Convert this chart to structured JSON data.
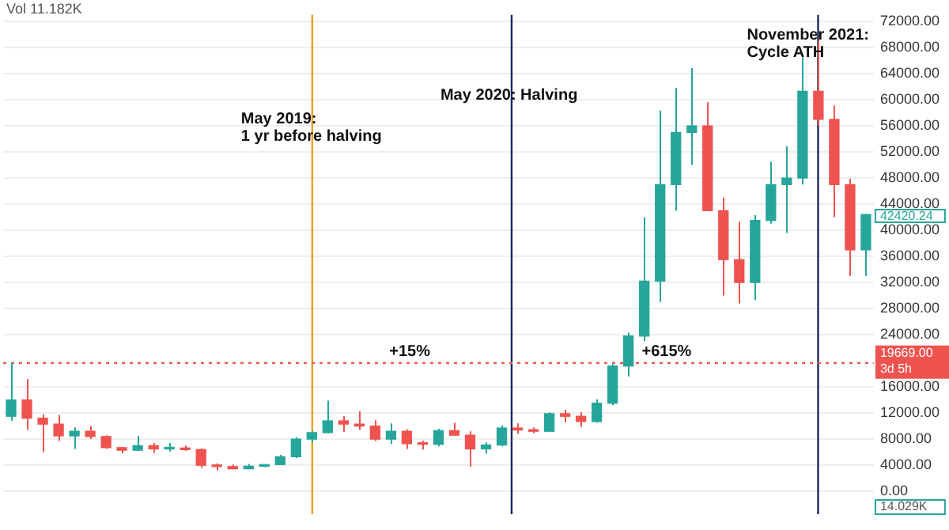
{
  "chart_data": {
    "type": "candlestick",
    "categories": [
      null,
      null,
      null,
      null,
      null,
      null,
      null,
      null,
      null,
      null,
      null,
      null,
      null,
      null,
      null,
      null,
      null,
      null,
      null,
      null,
      null,
      null,
      null,
      null,
      null,
      null,
      null,
      null,
      null,
      null,
      null,
      null,
      null,
      null,
      null,
      null,
      null,
      null,
      null,
      null,
      null,
      null,
      null,
      null,
      null,
      null,
      null,
      null,
      null,
      null,
      null,
      null,
      null,
      null,
      null
    ],
    "ohlc": [
      [
        11500,
        19700,
        10800,
        14000
      ],
      [
        14000,
        17200,
        9400,
        11200
      ],
      [
        11200,
        11800,
        6000,
        10300
      ],
      [
        10300,
        11700,
        7700,
        8500
      ],
      [
        8500,
        9800,
        6500,
        9200
      ],
      [
        9200,
        10000,
        8000,
        8400
      ],
      [
        8400,
        8600,
        6500,
        6700
      ],
      [
        6700,
        6800,
        5800,
        6300
      ],
      [
        6300,
        8500,
        6200,
        7000
      ],
      [
        7000,
        7400,
        5900,
        6500
      ],
      [
        6500,
        7400,
        6100,
        6600
      ],
      [
        6600,
        7000,
        6200,
        6400
      ],
      [
        6400,
        6600,
        3600,
        4000
      ],
      [
        4000,
        4300,
        3200,
        3800
      ],
      [
        3800,
        4100,
        3400,
        3450
      ],
      [
        3450,
        4200,
        3400,
        3850
      ],
      [
        3850,
        4100,
        3700,
        4100
      ],
      [
        4100,
        5600,
        4000,
        5300
      ],
      [
        5300,
        8300,
        5100,
        8000
      ],
      [
        8000,
        9300,
        7500,
        9000
      ],
      [
        9000,
        13900,
        8900,
        10800
      ],
      [
        10800,
        11500,
        9100,
        10300
      ],
      [
        10300,
        12300,
        9400,
        10000
      ],
      [
        10000,
        10900,
        7700,
        8000
      ],
      [
        8000,
        10400,
        7300,
        9200
      ],
      [
        9200,
        9500,
        6500,
        7300
      ],
      [
        7300,
        7750,
        6400,
        7200
      ],
      [
        7200,
        9600,
        6900,
        9300
      ],
      [
        9300,
        10500,
        8500,
        8600
      ],
      [
        8600,
        9200,
        3800,
        6500
      ],
      [
        6500,
        7500,
        5800,
        7100
      ],
      [
        7100,
        10100,
        6900,
        9700
      ],
      [
        9700,
        10400,
        8800,
        9400
      ],
      [
        9400,
        9800,
        8900,
        9200
      ],
      [
        9200,
        12100,
        9100,
        11900
      ],
      [
        11900,
        12500,
        10600,
        11500
      ],
      [
        11500,
        12100,
        9850,
        10700
      ],
      [
        10700,
        14100,
        10500,
        13500
      ],
      [
        13500,
        19500,
        13200,
        19200
      ],
      [
        19200,
        24300,
        17600,
        23800
      ],
      [
        23800,
        41950,
        23000,
        32200
      ],
      [
        32200,
        58350,
        29000,
        47000
      ],
      [
        47000,
        61800,
        43000,
        55000
      ],
      [
        55000,
        64850,
        50000,
        56000
      ],
      [
        56000,
        59600,
        43000,
        43000
      ],
      [
        43000,
        45000,
        30000,
        35500
      ],
      [
        35500,
        41300,
        28800,
        32000
      ],
      [
        32000,
        42300,
        29300,
        41500
      ],
      [
        41500,
        50500,
        41000,
        47000
      ],
      [
        47000,
        52900,
        39600,
        48000
      ],
      [
        48000,
        67000,
        47000,
        61300
      ],
      [
        61300,
        69000,
        56000,
        57000
      ],
      [
        57000,
        59100,
        42000,
        47000
      ],
      [
        47000,
        47900,
        33000,
        37000
      ],
      [
        37000,
        42500,
        33000,
        42420.24
      ]
    ],
    "ylim": [
      -3500,
      73000
    ],
    "yticks": [
      {
        "value": 0,
        "label": "0.00"
      },
      {
        "value": 4000,
        "label": "4000.00"
      },
      {
        "value": 8000,
        "label": "8000.00"
      },
      {
        "value": 12000,
        "label": "12000.00"
      },
      {
        "value": 16000,
        "label": "16000.00"
      },
      {
        "value": 24000,
        "label": "24000.00"
      },
      {
        "value": 28000,
        "label": "28000.00"
      },
      {
        "value": 32000,
        "label": "32000.00"
      },
      {
        "value": 36000,
        "label": "36000.00"
      },
      {
        "value": 40000,
        "label": "40000.00"
      },
      {
        "value": 44000,
        "label": "44000.00"
      },
      {
        "value": 48000,
        "label": "48000.00"
      },
      {
        "value": 52000,
        "label": "52000.00"
      },
      {
        "value": 56000,
        "label": "56000.00"
      },
      {
        "value": 60000,
        "label": "60000.00"
      },
      {
        "value": 64000,
        "label": "64000.00"
      },
      {
        "value": 68000,
        "label": "68000.00"
      },
      {
        "value": 72000,
        "label": "72000.00"
      }
    ],
    "tick_labels": "y",
    "grid": "y",
    "ref_lines": [
      {
        "axis": "y",
        "value": 19669,
        "label": "19669.00\n3d 5h",
        "color": "#ef5350",
        "line_style": "dotted"
      }
    ],
    "annotations": [
      "Vol 11.182K",
      "14.029K",
      "May 2019:\n1 yr before halving",
      "May 2020: Halving",
      "November 2021:\nCycle ATH",
      "+15%",
      "+615%",
      "42420.24"
    ]
  }
}
